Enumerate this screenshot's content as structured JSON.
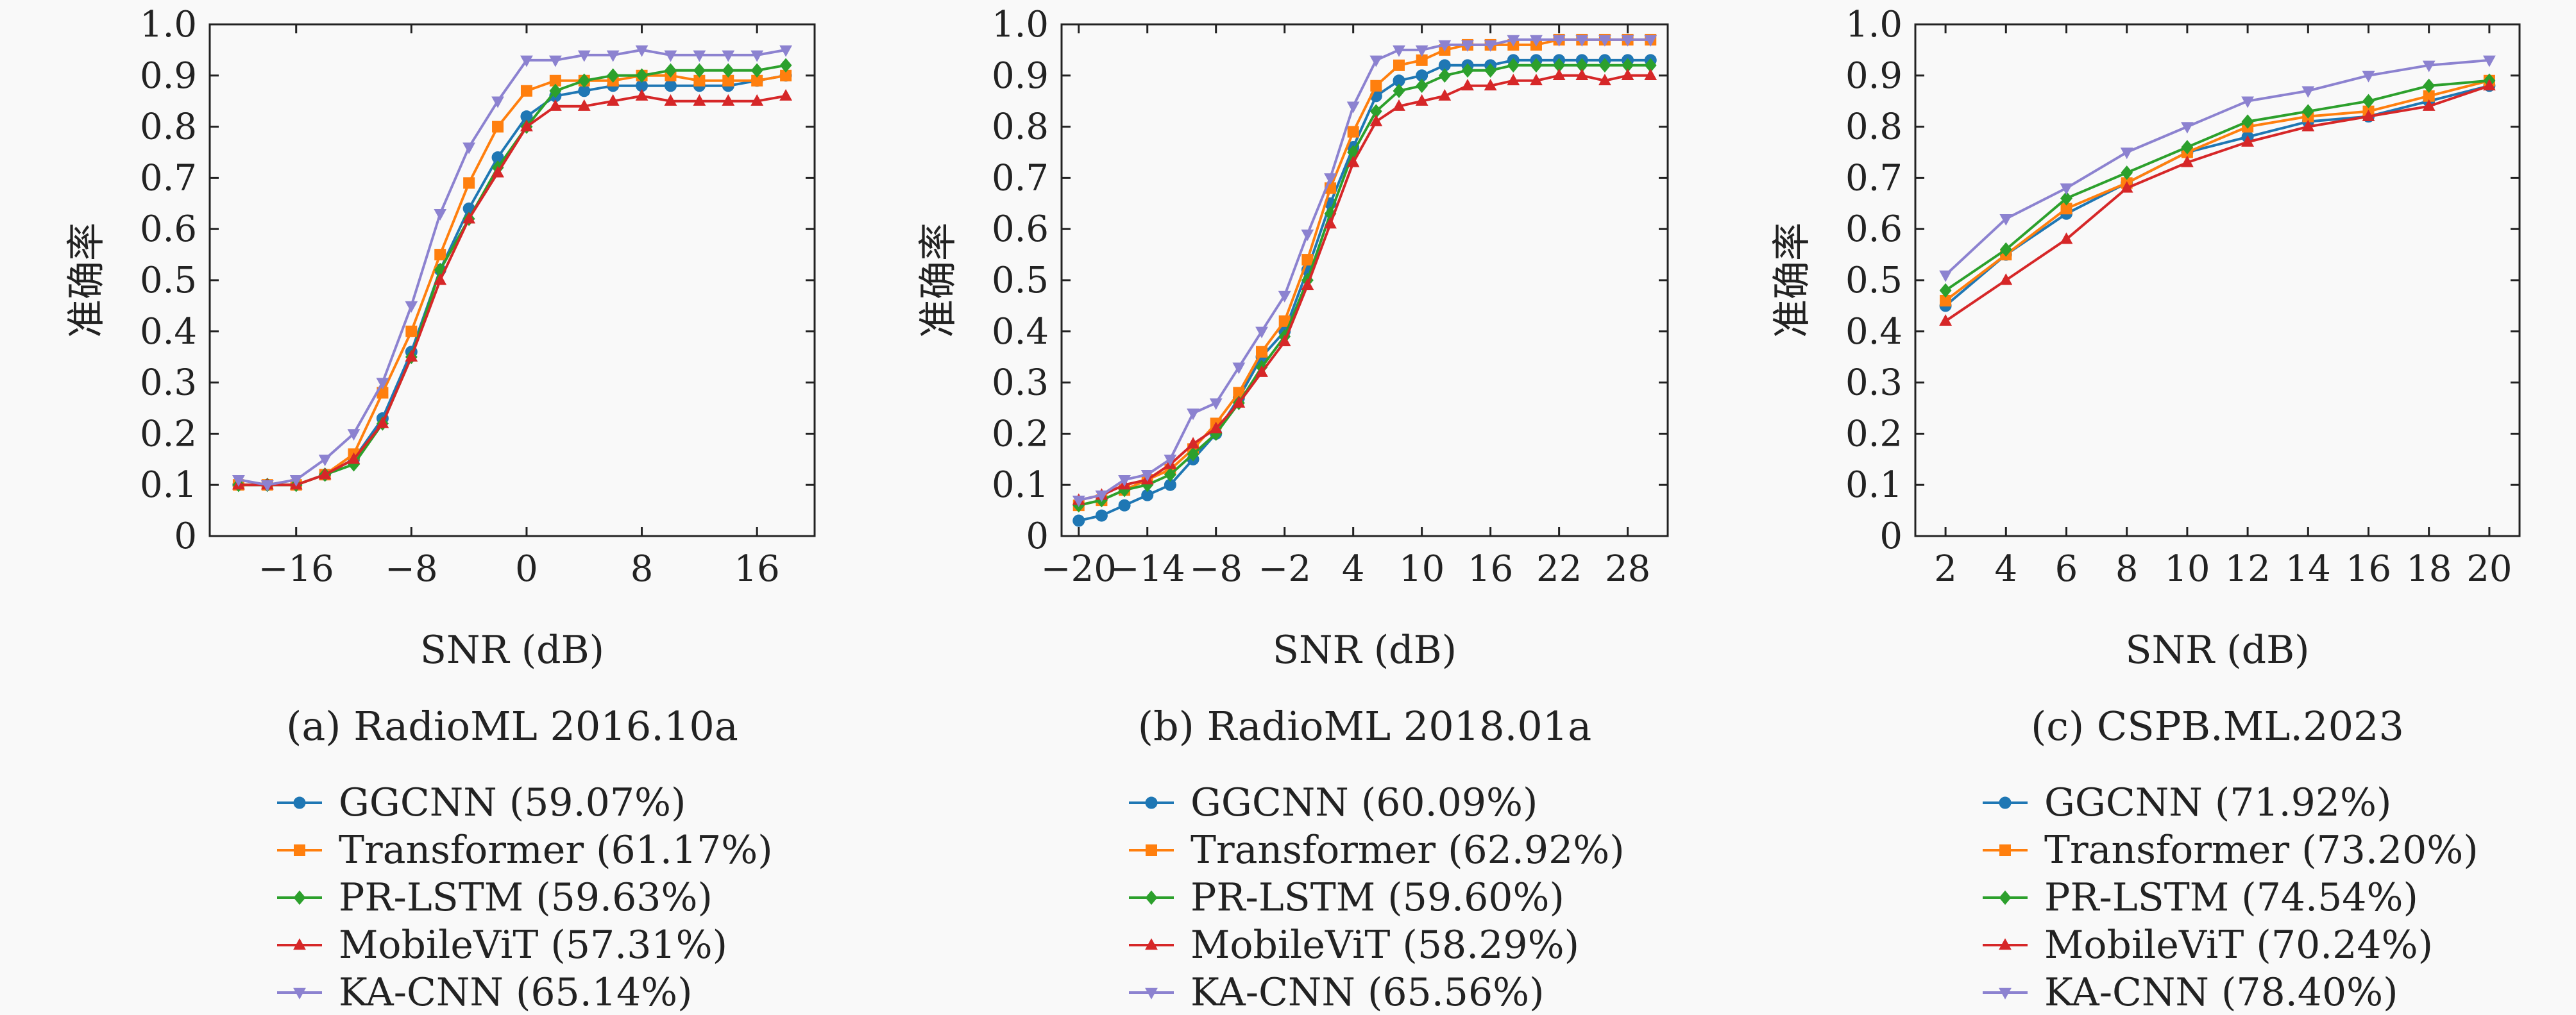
{
  "colors": {
    "GGCNN": "#1f77b4",
    "Transformer": "#ff7f0e",
    "PR-LSTM": "#2ca02c",
    "MobileViT": "#d62728",
    "KA-CNN": "#8c82d0"
  },
  "markers": {
    "GGCNN": "circle",
    "Transformer": "square",
    "PR-LSTM": "diamond",
    "MobileViT": "triangle-up",
    "KA-CNN": "triangle-down"
  },
  "chart_data": [
    {
      "type": "line",
      "caption": "(a) RadioML 2016.10a",
      "xlabel": "SNR (dB)",
      "ylabel": "准确率",
      "xlim": [
        -22,
        20
      ],
      "ylim": [
        0,
        1.0
      ],
      "xticks": [
        -16,
        -8,
        0,
        8,
        16
      ],
      "yticks": [
        "0",
        "0.1",
        "0.2",
        "0.3",
        "0.4",
        "0.5",
        "0.6",
        "0.7",
        "0.8",
        "0.9",
        "1.0"
      ],
      "x": [
        -20,
        -18,
        -16,
        -14,
        -12,
        -10,
        -8,
        -6,
        -4,
        -2,
        0,
        2,
        4,
        6,
        8,
        10,
        12,
        14,
        16,
        18
      ],
      "series": [
        {
          "name": "GGCNN",
          "legend": "GGCNN (59.07%)",
          "values": [
            0.1,
            0.1,
            0.1,
            0.12,
            0.15,
            0.23,
            0.36,
            0.52,
            0.64,
            0.74,
            0.82,
            0.86,
            0.87,
            0.88,
            0.88,
            0.88,
            0.88,
            0.88,
            0.89,
            0.9
          ]
        },
        {
          "name": "Transformer",
          "legend": "Transformer (61.17%)",
          "values": [
            0.1,
            0.1,
            0.1,
            0.12,
            0.16,
            0.28,
            0.4,
            0.55,
            0.69,
            0.8,
            0.87,
            0.89,
            0.89,
            0.89,
            0.9,
            0.9,
            0.89,
            0.89,
            0.89,
            0.9
          ]
        },
        {
          "name": "PR-LSTM",
          "legend": "PR-LSTM (59.63%)",
          "values": [
            0.1,
            0.1,
            0.1,
            0.12,
            0.14,
            0.22,
            0.35,
            0.52,
            0.62,
            0.72,
            0.8,
            0.87,
            0.89,
            0.9,
            0.9,
            0.91,
            0.91,
            0.91,
            0.91,
            0.92
          ]
        },
        {
          "name": "MobileViT",
          "legend": "MobileViT (57.31%)",
          "values": [
            0.1,
            0.1,
            0.1,
            0.12,
            0.15,
            0.22,
            0.35,
            0.5,
            0.62,
            0.71,
            0.8,
            0.84,
            0.84,
            0.85,
            0.86,
            0.85,
            0.85,
            0.85,
            0.85,
            0.86
          ]
        },
        {
          "name": "KA-CNN",
          "legend": "KA-CNN (65.14%)",
          "values": [
            0.11,
            0.1,
            0.11,
            0.15,
            0.2,
            0.3,
            0.45,
            0.63,
            0.76,
            0.85,
            0.93,
            0.93,
            0.94,
            0.94,
            0.95,
            0.94,
            0.94,
            0.94,
            0.94,
            0.95
          ]
        }
      ]
    },
    {
      "type": "line",
      "caption": "(b) RadioML 2018.01a",
      "xlabel": "SNR (dB)",
      "ylabel": "准确率",
      "xlim": [
        -21.5,
        31.5
      ],
      "ylim": [
        0,
        1.0
      ],
      "xticks": [
        -20,
        -14,
        -8,
        -2,
        4,
        10,
        16,
        22,
        28
      ],
      "yticks": [
        "0",
        "0.1",
        "0.2",
        "0.3",
        "0.4",
        "0.5",
        "0.6",
        "0.7",
        "0.8",
        "0.9",
        "1.0"
      ],
      "x": [
        -20,
        -18,
        -16,
        -14,
        -12,
        -10,
        -8,
        -6,
        -4,
        -2,
        0,
        2,
        4,
        6,
        8,
        10,
        12,
        14,
        16,
        18,
        20,
        22,
        24,
        26,
        28,
        30
      ],
      "series": [
        {
          "name": "GGCNN",
          "legend": "GGCNN (60.09%)",
          "values": [
            0.03,
            0.04,
            0.06,
            0.08,
            0.1,
            0.15,
            0.2,
            0.27,
            0.35,
            0.4,
            0.52,
            0.65,
            0.76,
            0.86,
            0.89,
            0.9,
            0.92,
            0.92,
            0.92,
            0.93,
            0.93,
            0.93,
            0.93,
            0.93,
            0.93,
            0.93
          ]
        },
        {
          "name": "Transformer",
          "legend": "Transformer (62.92%)",
          "values": [
            0.06,
            0.07,
            0.09,
            0.11,
            0.13,
            0.17,
            0.22,
            0.28,
            0.36,
            0.42,
            0.54,
            0.68,
            0.79,
            0.88,
            0.92,
            0.93,
            0.95,
            0.96,
            0.96,
            0.96,
            0.96,
            0.97,
            0.97,
            0.97,
            0.97,
            0.97
          ]
        },
        {
          "name": "PR-LSTM",
          "legend": "PR-LSTM (59.60%)",
          "values": [
            0.06,
            0.07,
            0.09,
            0.1,
            0.12,
            0.16,
            0.2,
            0.26,
            0.33,
            0.39,
            0.5,
            0.63,
            0.75,
            0.83,
            0.87,
            0.88,
            0.9,
            0.91,
            0.91,
            0.92,
            0.92,
            0.92,
            0.92,
            0.92,
            0.92,
            0.92
          ]
        },
        {
          "name": "MobileViT",
          "legend": "MobileViT (58.29%)",
          "values": [
            0.07,
            0.08,
            0.1,
            0.11,
            0.14,
            0.18,
            0.21,
            0.26,
            0.32,
            0.38,
            0.49,
            0.61,
            0.73,
            0.81,
            0.84,
            0.85,
            0.86,
            0.88,
            0.88,
            0.89,
            0.89,
            0.9,
            0.9,
            0.89,
            0.9,
            0.9
          ]
        },
        {
          "name": "KA-CNN",
          "legend": "KA-CNN (65.56%)",
          "values": [
            0.07,
            0.08,
            0.11,
            0.12,
            0.15,
            0.24,
            0.26,
            0.33,
            0.4,
            0.47,
            0.59,
            0.7,
            0.84,
            0.93,
            0.95,
            0.95,
            0.96,
            0.96,
            0.96,
            0.97,
            0.97,
            0.97,
            0.97,
            0.97,
            0.97,
            0.97
          ]
        }
      ]
    },
    {
      "type": "line",
      "caption": "(c) CSPB.ML.2023",
      "xlabel": "SNR (dB)",
      "ylabel": "准确率",
      "xlim": [
        1.0,
        21.0
      ],
      "ylim": [
        0,
        1.0
      ],
      "xticks": [
        2,
        4,
        6,
        8,
        10,
        12,
        14,
        16,
        18,
        20
      ],
      "yticks": [
        "0",
        "0.1",
        "0.2",
        "0.3",
        "0.4",
        "0.5",
        "0.6",
        "0.7",
        "0.8",
        "0.9",
        "1.0"
      ],
      "x": [
        2,
        4,
        6,
        8,
        10,
        12,
        14,
        16,
        18,
        20
      ],
      "series": [
        {
          "name": "GGCNN",
          "legend": "GGCNN (71.92%)",
          "values": [
            0.45,
            0.55,
            0.63,
            0.69,
            0.75,
            0.78,
            0.81,
            0.82,
            0.85,
            0.88
          ]
        },
        {
          "name": "Transformer",
          "legend": "Transformer (73.20%)",
          "values": [
            0.46,
            0.55,
            0.64,
            0.69,
            0.75,
            0.8,
            0.82,
            0.83,
            0.86,
            0.89
          ]
        },
        {
          "name": "PR-LSTM",
          "legend": "PR-LSTM (74.54%)",
          "values": [
            0.48,
            0.56,
            0.66,
            0.71,
            0.76,
            0.81,
            0.83,
            0.85,
            0.88,
            0.89
          ]
        },
        {
          "name": "MobileViT",
          "legend": "MobileViT (70.24%)",
          "values": [
            0.42,
            0.5,
            0.58,
            0.68,
            0.73,
            0.77,
            0.8,
            0.82,
            0.84,
            0.88
          ]
        },
        {
          "name": "KA-CNN",
          "legend": "KA-CNN (78.40%)",
          "values": [
            0.51,
            0.62,
            0.68,
            0.75,
            0.8,
            0.85,
            0.87,
            0.9,
            0.92,
            0.93
          ]
        }
      ]
    }
  ]
}
